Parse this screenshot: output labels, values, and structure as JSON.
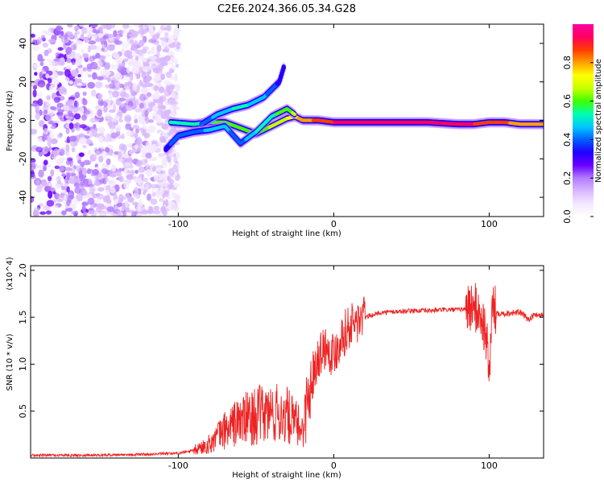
{
  "title": "C2E6.2024.366.05.34.G28",
  "chart_data": [
    {
      "type": "heatmap",
      "title": "C2E6.2024.366.05.34.G28",
      "xlabel": "Height of straight line (km)",
      "ylabel": "Frequency (Hz)",
      "xlim": [
        -195,
        135
      ],
      "ylim": [
        -50,
        50
      ],
      "xticks": [
        -100,
        0,
        100
      ],
      "yticks": [
        -40,
        -20,
        0,
        20,
        40
      ],
      "colorbar": {
        "label": "Normalized spectral amplitude",
        "range": [
          0.0,
          1.0
        ],
        "ticks": [
          0.0,
          0.2,
          0.4,
          0.6,
          0.8
        ],
        "colors": [
          "#ffffff",
          "#f3e8ff",
          "#d9b8ff",
          "#b27cff",
          "#6a00ff",
          "#2000ff",
          "#0060ff",
          "#00c8ff",
          "#00ffb0",
          "#40ff00",
          "#c8ff00",
          "#ffff00",
          "#ffa000",
          "#ff3c00",
          "#ff0060",
          "#ff00a0"
        ]
      },
      "scatter_region": {
        "x": [
          -195,
          -100
        ],
        "y": [
          -50,
          50
        ],
        "amplitude": [
          0.05,
          0.3
        ]
      },
      "tracks": [
        {
          "name": "main",
          "x": [
            -105,
            -90,
            -80,
            -70,
            -60,
            -50,
            -40,
            -30,
            -25,
            -20,
            -10,
            0,
            20,
            40,
            60,
            80,
            90,
            100,
            110,
            120,
            135
          ],
          "y": [
            -1,
            -2,
            -1,
            -1,
            -4,
            -7,
            -3,
            1,
            2,
            0,
            0,
            -1,
            -1,
            -1,
            -1,
            -2,
            -2,
            -1,
            -1,
            -2,
            -2
          ],
          "amplitude": [
            0.5,
            0.5,
            0.55,
            0.6,
            0.6,
            0.55,
            0.65,
            0.7,
            0.75,
            0.8,
            0.85,
            0.9,
            0.95,
            0.95,
            0.95,
            0.95,
            0.9,
            0.85,
            0.85,
            0.8,
            0.8
          ]
        },
        {
          "name": "upper",
          "x": [
            -85,
            -75,
            -65,
            -55,
            -45,
            -35,
            -32
          ],
          "y": [
            -2,
            3,
            6,
            8,
            12,
            20,
            28
          ],
          "amplitude": [
            0.4,
            0.45,
            0.5,
            0.5,
            0.45,
            0.35,
            0.3
          ]
        },
        {
          "name": "lower",
          "x": [
            -108,
            -100,
            -90,
            -80,
            -70,
            -60,
            -50,
            -40,
            -30,
            -25
          ],
          "y": [
            -15,
            -8,
            -6,
            -5,
            -3,
            -12,
            -6,
            2,
            6,
            3
          ],
          "amplitude": [
            0.35,
            0.4,
            0.4,
            0.45,
            0.45,
            0.4,
            0.5,
            0.55,
            0.6,
            0.65
          ]
        }
      ]
    },
    {
      "type": "line",
      "xlabel": "Height of straight line (km)",
      "ylabel": "SNR (10 * v/v)",
      "y_multiplier": "(x10^4)",
      "xlim": [
        -195,
        135
      ],
      "ylim": [
        0,
        20500
      ],
      "xticks": [
        -100,
        0,
        100
      ],
      "yticks": [
        0.5,
        1.0,
        1.5,
        2.0
      ],
      "ytick_labels": [
        "0.5",
        "1.0",
        "1.5",
        "2.0"
      ],
      "color": "#ee2222",
      "x": [
        -195,
        -160,
        -120,
        -100,
        -90,
        -80,
        -70,
        -60,
        -50,
        -40,
        -30,
        -20,
        -15,
        -10,
        -5,
        0,
        5,
        10,
        15,
        20,
        30,
        40,
        50,
        60,
        70,
        80,
        85,
        90,
        95,
        98,
        100,
        102,
        105,
        110,
        115,
        120,
        125,
        130,
        135
      ],
      "y": [
        300,
        300,
        400,
        500,
        800,
        1500,
        3000,
        4000,
        4500,
        4800,
        4500,
        3000,
        8000,
        11000,
        12000,
        11000,
        13000,
        14000,
        14500,
        15000,
        15500,
        15600,
        15700,
        15700,
        15800,
        15800,
        15900,
        16200,
        15000,
        13000,
        9000,
        16000,
        15500,
        15400,
        15500,
        15500,
        14800,
        15300,
        15200
      ]
    }
  ]
}
